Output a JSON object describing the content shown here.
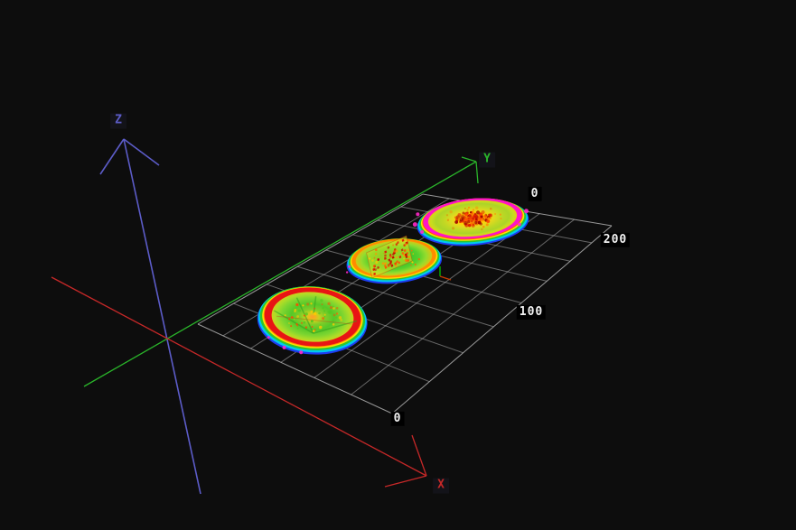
{
  "viewport": {
    "background": "#0d0d0d",
    "axis_labels": {
      "x": "X",
      "y": "Y",
      "z": "Z"
    },
    "axis_colors": {
      "x": "#c62828",
      "y": "#2ab52a",
      "z": "#5c5cc8"
    },
    "ticks": [
      {
        "label": "0",
        "cx": 592,
        "cy": 215
      },
      {
        "label": "200",
        "cx": 681,
        "cy": 266
      },
      {
        "label": "100",
        "cx": 588,
        "cy": 346
      },
      {
        "label": "0",
        "cx": 440,
        "cy": 464
      }
    ],
    "grid_line_color": "#b0b0b0"
  },
  "chart_data": {
    "type": "heatmap",
    "title": "",
    "scene": "3D perspective viewport: three disc-shaped height-map scans resting on a reference grid with XYZ axis arrows",
    "axes": {
      "x": {
        "label": "X",
        "ticks": [
          "0"
        ]
      },
      "y": {
        "label": "Y",
        "ticks": [
          0,
          100,
          200
        ]
      },
      "z": {
        "label": "Z",
        "ticks": []
      }
    },
    "grid": {
      "columns": 6,
      "rows": 8,
      "y_range": [
        0,
        200
      ],
      "y_tick_step": 100,
      "grid_on": true
    },
    "colormap_low_to_high": [
      "#1e3cf0",
      "#00c8f0",
      "#2cc82c",
      "#c8e020",
      "#ffe000",
      "#ff8c00",
      "#e81414",
      "#ff14c8"
    ],
    "palette": {
      "blue": "#1e3cf0",
      "cyan": "#00c8f0",
      "green": "#2cc82c",
      "yellow": "#ffe000",
      "orange": "#ff8c00",
      "orangered": "#ff5a00",
      "red": "#e81414",
      "magenta": "#ff14c8",
      "pink": "#ff28c8"
    },
    "samples": [
      {
        "name": "disc-near-left",
        "approx_grid_y": 30,
        "surface": "green mid-height surface, small orange center spot, faint radial groove lines, thick red ring near edge, rainbow fall-off rim (yellow-green-cyan-blue)"
      },
      {
        "name": "disc-middle",
        "approx_grid_y": 95,
        "surface": "green surface with red matrix-code speckle square on yellow patch in center, orange ring near edge, rainbow fall-off rim"
      },
      {
        "name": "disc-far-right",
        "approx_grid_y": 155,
        "surface": "yellow-green surface, red speckled center blob, bright magenta peak ring near edge, rainbow fall-off rim"
      }
    ]
  }
}
